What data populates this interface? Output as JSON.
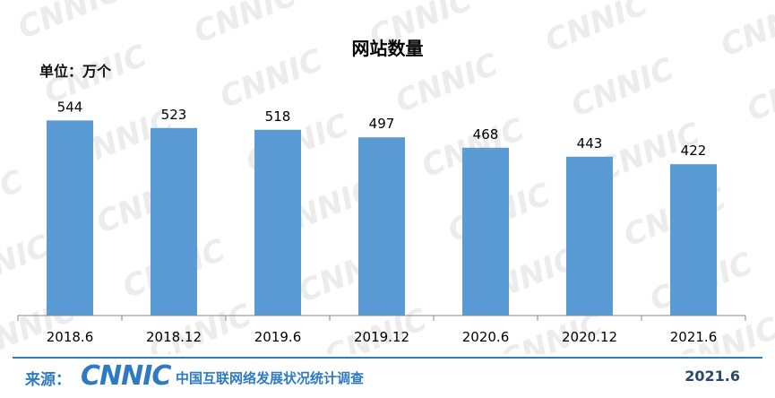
{
  "chart_data": {
    "type": "bar",
    "title": "网站数量",
    "unit_label": "单位：万个",
    "categories": [
      "2018.6",
      "2018.12",
      "2019.6",
      "2019.12",
      "2020.6",
      "2020.12",
      "2021.6"
    ],
    "values": [
      544,
      523,
      518,
      497,
      468,
      443,
      422
    ],
    "ylim": [
      0,
      560
    ],
    "grid": false,
    "bar_color": "#5b9bd5"
  },
  "footer": {
    "source_label": "来源：",
    "logo_text": "CNNIC",
    "survey_name": "中国互联网络发展状况统计调查",
    "date": "2021.6"
  },
  "colors": {
    "brand": "#2e7bc4",
    "watermark": "#e6e6e6"
  }
}
